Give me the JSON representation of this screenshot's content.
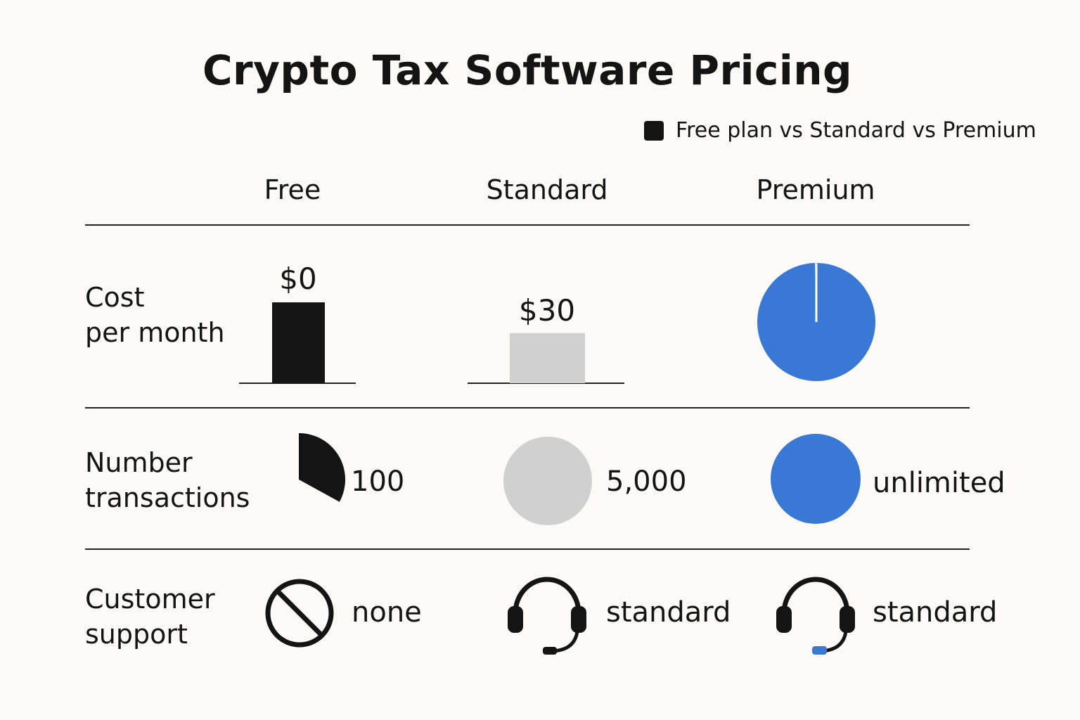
{
  "title": "Crypto Tax Software Pricing",
  "legend": {
    "label": "Free plan vs Standard vs Premium",
    "color": "#141414"
  },
  "columns": [
    "Free",
    "Standard",
    "Premium"
  ],
  "rows": {
    "cost": {
      "label_line1": "Cost",
      "label_line2": "per month"
    },
    "transactions": {
      "label_line1": "Number",
      "label_line2": "transactions"
    },
    "support": {
      "label_line1": "Customer",
      "label_line2": "support"
    }
  },
  "chart_data": {
    "type": "table",
    "title": "Crypto Tax Software Pricing",
    "legend": "Free plan vs Standard vs Premium",
    "plans": [
      "Free",
      "Standard",
      "Premium"
    ],
    "colors": {
      "Free": "#141414",
      "Standard": "#d0d0d0",
      "Premium": "#3a78d6"
    },
    "cost_per_month": {
      "labels": [
        "$0",
        "$30",
        ""
      ],
      "values": [
        0,
        30,
        null
      ],
      "free_bar_relative_height": 1.0,
      "standard_bar_relative_height": 0.62,
      "premium_pie_fraction": 0.995
    },
    "number_transactions": {
      "labels": [
        "100",
        "5,000",
        "unlimited"
      ],
      "free_wedge_fraction": 0.33
    },
    "customer_support": {
      "labels": [
        "none",
        "standard",
        "standard"
      ],
      "icons": [
        "no-entry-icon",
        "headset-icon",
        "headset-icon"
      ]
    }
  }
}
